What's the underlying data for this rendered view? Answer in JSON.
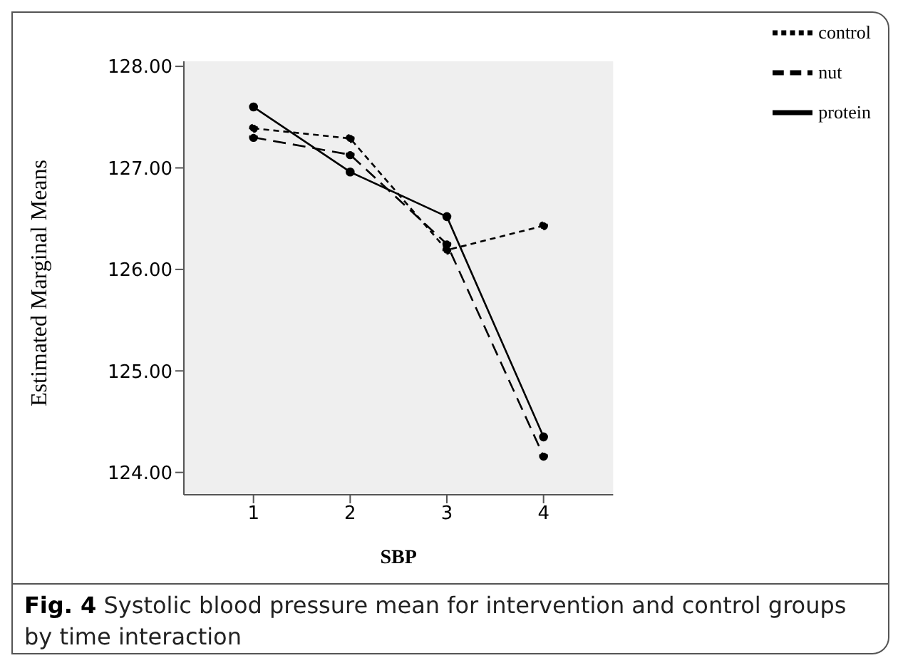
{
  "chart_data": {
    "type": "line",
    "xlabel": "SBP",
    "ylabel": "Estimated Marginal Means",
    "x": [
      1,
      2,
      3,
      4
    ],
    "xlim": [
      0.28,
      4.72
    ],
    "xticks": [
      1,
      2,
      3,
      4
    ],
    "ylim": [
      123.78,
      128.05
    ],
    "yticks": [
      {
        "value": 124,
        "label": "124.00"
      },
      {
        "value": 125,
        "label": "125.00"
      },
      {
        "value": 126,
        "label": "126.00"
      },
      {
        "value": 127,
        "label": "127.00"
      },
      {
        "value": 128,
        "label": "128.00"
      }
    ],
    "series": [
      {
        "name": "control",
        "color": "#000000",
        "line_style": "dotted",
        "values": [
          127.39,
          127.29,
          126.19,
          126.43
        ]
      },
      {
        "name": "nut",
        "color": "#000000",
        "line_style": "dashed",
        "values": [
          127.3,
          127.13,
          126.25,
          124.16
        ]
      },
      {
        "name": "protein",
        "color": "#000000",
        "line_style": "solid",
        "values": [
          127.6,
          126.96,
          126.52,
          124.35
        ]
      }
    ],
    "marker": "circle",
    "grid": false,
    "legend": "top right",
    "annotations": [
      "Fig. 4",
      "Systolic blood pressure mean for intervention and control groups by time interaction"
    ]
  }
}
